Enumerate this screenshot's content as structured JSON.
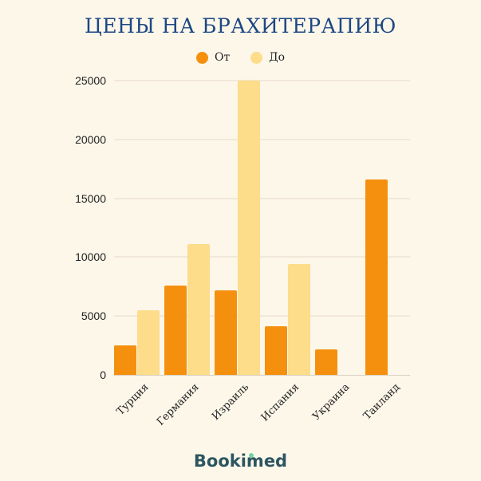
{
  "title": "ЦЕНЫ НА БРАХИТЕРАПИЮ",
  "legend": [
    {
      "label": "От",
      "color": "#f5900f"
    },
    {
      "label": "До",
      "color": "#fddc8a"
    }
  ],
  "brand": "Bookimed",
  "chart_data": {
    "type": "bar",
    "title": "ЦЕНЫ НА БРАХИТЕРАПИЮ",
    "xlabel": "",
    "ylabel": "",
    "categories": [
      "Турция",
      "Германия",
      "Израиль",
      "Испания",
      "Украина",
      "Таиланд"
    ],
    "series": [
      {
        "name": "От",
        "color": "#f5900f",
        "values": [
          2500,
          7600,
          7200,
          4100,
          2200,
          16600
        ]
      },
      {
        "name": "До",
        "color": "#fddc8a",
        "values": [
          5500,
          11100,
          25000,
          9400,
          null,
          null
        ]
      }
    ],
    "yticks": [
      0,
      5000,
      10000,
      15000,
      20000,
      25000
    ],
    "ylim": [
      0,
      25000
    ],
    "grid": true,
    "legend_position": "top"
  }
}
